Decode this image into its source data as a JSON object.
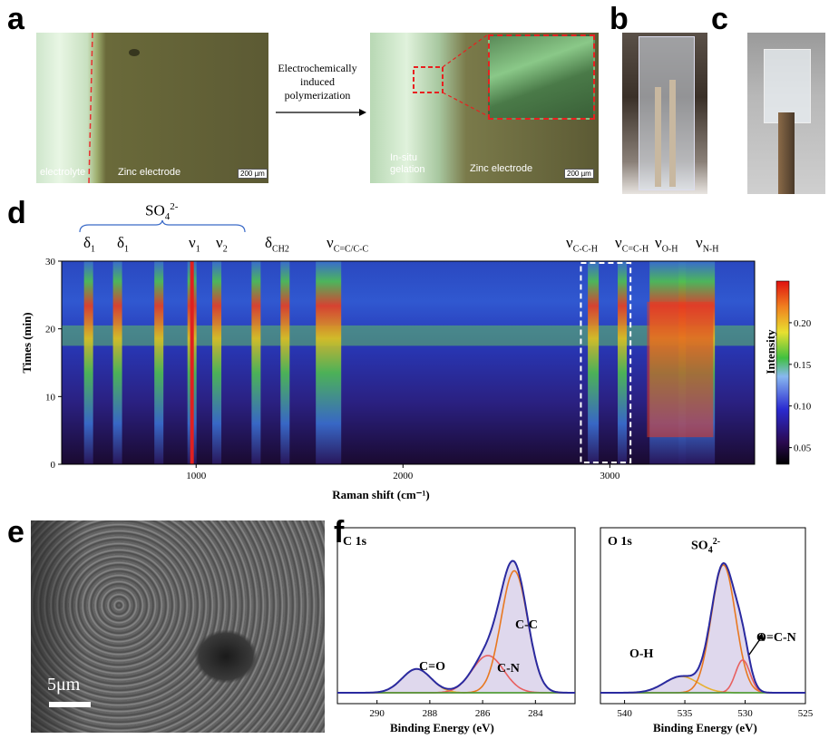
{
  "panels": {
    "a": "a",
    "b": "b",
    "c": "c",
    "d": "d",
    "e": "e",
    "f": "f"
  },
  "panel_a": {
    "left_label_electrolyte": "electrolyte",
    "left_label_zinc": "Zinc electrode",
    "left_scale": "200 µm",
    "arrow_text_l1": "Electrochemically",
    "arrow_text_l2": "induced",
    "arrow_text_l3": "polymerization",
    "right_label_gel_l1": "In-situ",
    "right_label_gel_l2": "gelation",
    "right_label_zinc": "Zinc electrode",
    "right_scale": "200 µm"
  },
  "panel_d": {
    "group_label": "SO",
    "group_sub": "4",
    "group_sup": "2-",
    "peaks": [
      {
        "sym": "δ",
        "sub": "1"
      },
      {
        "sym": "δ",
        "sub": "1"
      },
      {
        "sym": "ν",
        "sub": "1"
      },
      {
        "sym": "ν",
        "sub": "2"
      },
      {
        "sym": "δ",
        "sub": "CH2"
      },
      {
        "sym": "ν",
        "sub": "C=C/C-C"
      },
      {
        "sym": "ν",
        "sub": "C-C-H"
      },
      {
        "sym": "ν",
        "sub": "C=C-H"
      },
      {
        "sym": "ν",
        "sub": "O-H"
      },
      {
        "sym": "ν",
        "sub": "N-H"
      }
    ]
  },
  "panel_e": {
    "scale": "5μm"
  },
  "panel_f": {
    "c1s_title": "C 1s",
    "o1s_title": "O 1s",
    "c_peaks": [
      "C=O",
      "C-N",
      "C-C"
    ],
    "o_peaks": [
      "O-H",
      "SO",
      "O=C-N"
    ],
    "o_so_sub": "4",
    "o_so_sup": "2-"
  },
  "chart_data": [
    {
      "type": "heatmap",
      "title": "",
      "xlabel": "Raman shift (cm⁻¹)",
      "ylabel": "Times (min)",
      "x_ticks": [
        1000,
        2000,
        3000
      ],
      "y_ticks": [
        0,
        10,
        20,
        30
      ],
      "xlim": [
        350,
        3700
      ],
      "ylim": [
        0,
        30
      ],
      "colorbar_label": "Intensity",
      "colorbar_ticks": [
        0.05,
        0.1,
        0.15,
        0.2
      ],
      "colorbar_range": [
        0.03,
        0.25
      ],
      "peak_positions_cm": [
        480,
        620,
        820,
        980,
        1100,
        1290,
        1430,
        1640,
        2920,
        3060,
        3280,
        3420
      ],
      "colors": {
        "low": "#1a0a3a",
        "mid": "#2233cc",
        "high": "#e02020"
      }
    },
    {
      "type": "line",
      "title": "C 1s",
      "xlabel": "Binding Energy (eV)",
      "ylabel": "",
      "x_ticks": [
        290,
        288,
        286,
        284
      ],
      "xlim": [
        291.5,
        282.5
      ],
      "series": [
        {
          "name": "C=O",
          "center": 288.5,
          "height": 0.16,
          "width": 0.55,
          "color": "#e8b030"
        },
        {
          "name": "C-N",
          "center": 285.8,
          "height": 0.25,
          "width": 0.6,
          "color": "#e86060"
        },
        {
          "name": "C-C",
          "center": 284.8,
          "height": 0.82,
          "width": 0.5,
          "color": "#e87820"
        }
      ],
      "colors": {
        "envelope": "#2a2aa0",
        "background": "#3a9a3a",
        "fill": "#b8a8d8"
      }
    },
    {
      "type": "line",
      "title": "O 1s",
      "xlabel": "Binding Energy (eV)",
      "ylabel": "",
      "x_ticks": [
        540,
        535,
        530,
        525
      ],
      "xlim": [
        542,
        525
      ],
      "series": [
        {
          "name": "O-H",
          "center": 535.3,
          "height": 0.11,
          "width": 1.4,
          "color": "#e8b030"
        },
        {
          "name": "SO4 2-",
          "center": 531.8,
          "height": 0.86,
          "width": 1.0,
          "color": "#e87820"
        },
        {
          "name": "O=C-N",
          "center": 530.2,
          "height": 0.22,
          "width": 0.6,
          "color": "#e86060"
        }
      ],
      "colors": {
        "envelope": "#2a2aa0",
        "background": "#3a9a3a",
        "fill": "#b8a8d8"
      }
    }
  ]
}
